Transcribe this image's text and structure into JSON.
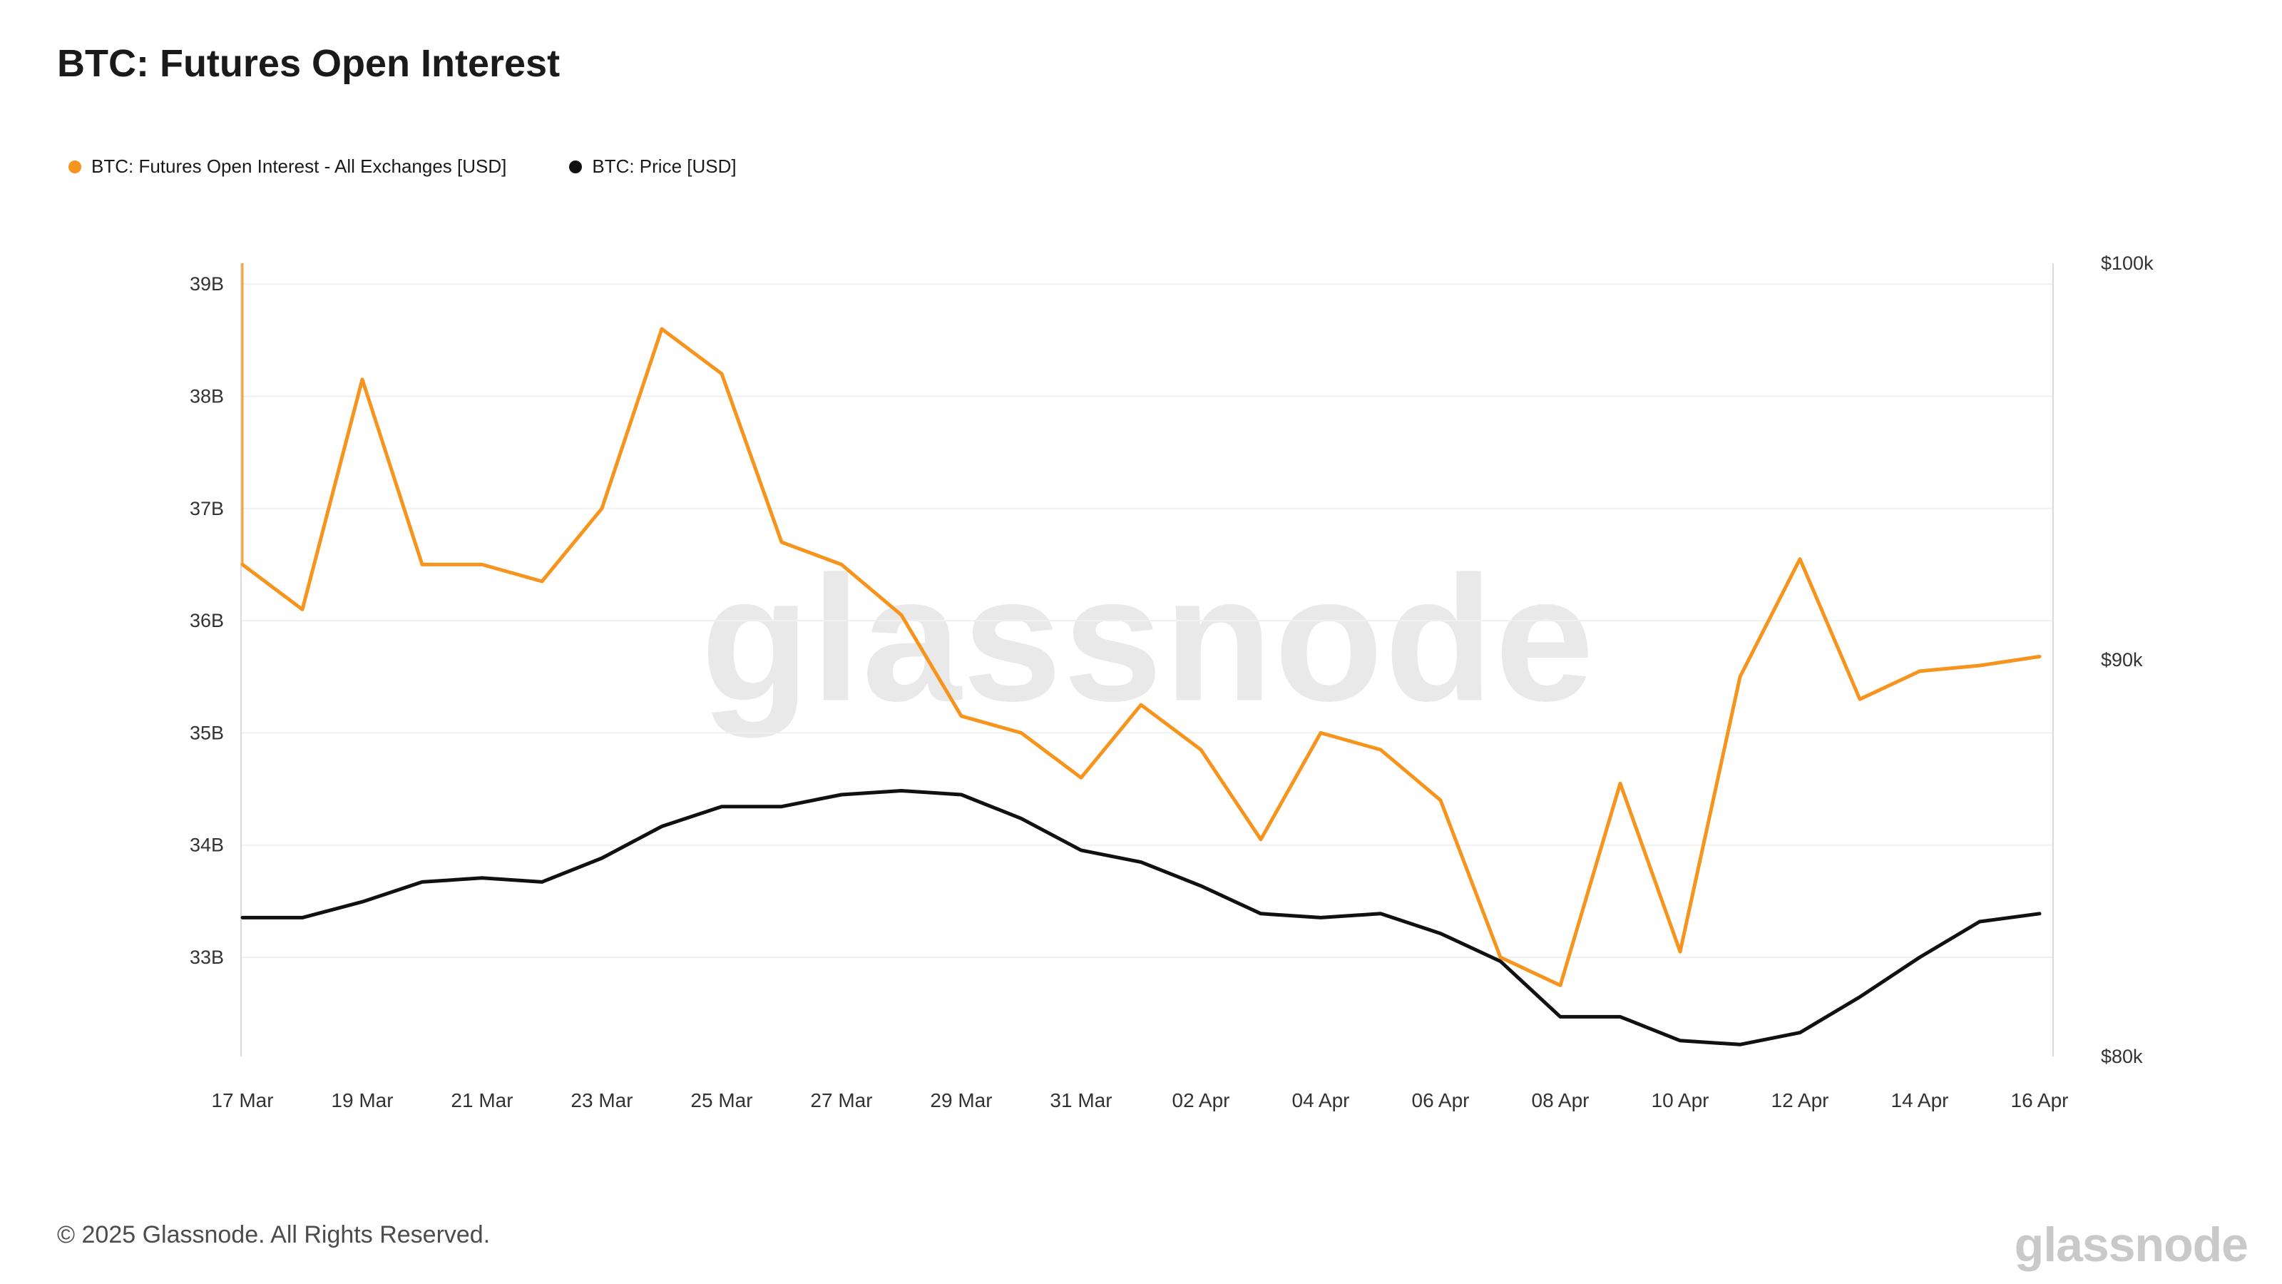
{
  "title": "BTC: Futures Open Interest",
  "legend": [
    {
      "label": "BTC: Futures Open Interest - All Exchanges [USD]",
      "color": "#f7941d",
      "marker": "orange-dot"
    },
    {
      "label": "BTC: Price [USD]",
      "color": "#111111",
      "marker": "black-dot"
    }
  ],
  "watermark": "glassnode",
  "footer": {
    "copyright": "© 2025 Glassnode. All Rights Reserved.",
    "logo": "glassnode"
  },
  "chart_data": {
    "type": "line",
    "title": "BTC: Futures Open Interest",
    "grid": true,
    "legend_position": "top-left",
    "x": [
      "17 Mar",
      "18 Mar",
      "19 Mar",
      "20 Mar",
      "21 Mar",
      "22 Mar",
      "23 Mar",
      "24 Mar",
      "25 Mar",
      "26 Mar",
      "27 Mar",
      "28 Mar",
      "29 Mar",
      "30 Mar",
      "31 Mar",
      "01 Apr",
      "02 Apr",
      "03 Apr",
      "04 Apr",
      "05 Apr",
      "06 Apr",
      "07 Apr",
      "08 Apr",
      "09 Apr",
      "10 Apr",
      "11 Apr",
      "12 Apr",
      "13 Apr",
      "14 Apr",
      "15 Apr",
      "16 Apr"
    ],
    "x_tick_labels": [
      "17 Mar",
      "19 Mar",
      "21 Mar",
      "23 Mar",
      "25 Mar",
      "27 Mar",
      "29 Mar",
      "31 Mar",
      "02 Apr",
      "04 Apr",
      "06 Apr",
      "08 Apr",
      "10 Apr",
      "12 Apr",
      "14 Apr",
      "16 Apr"
    ],
    "series": [
      {
        "name": "BTC: Futures Open Interest - All Exchanges [USD]",
        "axis": "left",
        "unit": "billion USD",
        "color": "#f7941d",
        "values": [
          36.5,
          36.1,
          38.15,
          36.5,
          36.5,
          36.35,
          37.0,
          38.6,
          38.2,
          36.7,
          36.5,
          36.05,
          35.15,
          35.0,
          34.6,
          35.25,
          34.85,
          34.05,
          35.0,
          34.85,
          34.4,
          33.0,
          32.75,
          34.55,
          33.05,
          35.5,
          36.55,
          35.3,
          35.55,
          35.6,
          35.68
        ]
      },
      {
        "name": "BTC: Price [USD]",
        "axis": "right",
        "unit": "thousand USD",
        "color": "#111111",
        "values": [
          83.5,
          83.5,
          83.9,
          84.4,
          84.5,
          84.4,
          85.0,
          85.8,
          86.3,
          86.3,
          86.6,
          86.7,
          86.6,
          86.0,
          85.2,
          84.9,
          84.3,
          83.6,
          83.5,
          83.6,
          83.1,
          82.4,
          81.0,
          81.0,
          80.4,
          80.3,
          80.6,
          81.5,
          82.5,
          83.4,
          83.6
        ]
      }
    ],
    "left_axis": {
      "ticks": [
        39,
        38,
        37,
        36,
        35,
        34,
        33
      ],
      "tick_labels": [
        "39B",
        "38B",
        "37B",
        "36B",
        "35B",
        "34B",
        "33B"
      ],
      "range": [
        32.1,
        39.2
      ]
    },
    "right_axis": {
      "ticks": [
        100,
        90,
        80
      ],
      "tick_labels": [
        "$100k",
        "$90k",
        "$80k"
      ],
      "range": [
        80,
        100
      ]
    }
  }
}
